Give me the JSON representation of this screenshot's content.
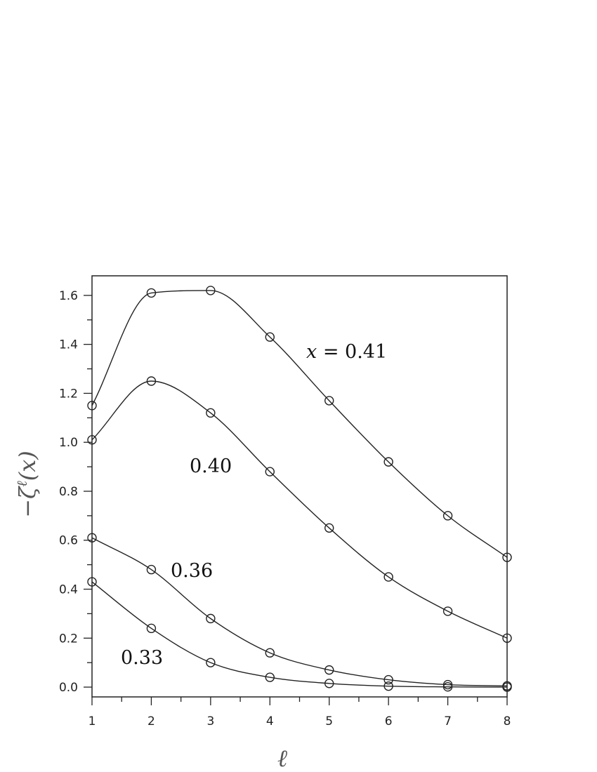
{
  "chart_data": {
    "type": "line",
    "xlabel": "ℓ",
    "ylabel": "−ζ",
    "ylabel_sup": "ℓ",
    "ylabel_tail": "(x)",
    "xlim": [
      1,
      8
    ],
    "ylim": [
      -0.04,
      1.68
    ],
    "x_ticks": [
      1,
      2,
      3,
      4,
      5,
      6,
      7,
      8
    ],
    "y_ticks": [
      "0.0",
      "0.2",
      "0.4",
      "0.6",
      "0.8",
      "1.0",
      "1.2",
      "1.4",
      "1.6"
    ],
    "grid": false,
    "marker": "open-circle",
    "x": [
      1,
      2,
      3,
      4,
      5,
      6,
      7,
      8
    ],
    "series": [
      {
        "name": "x = 0.41",
        "label_prefix": "x",
        "label_value": " = 0.41",
        "values": [
          1.15,
          1.61,
          1.62,
          1.43,
          1.17,
          0.92,
          0.7,
          0.53
        ]
      },
      {
        "name": "0.40",
        "values": [
          1.01,
          1.25,
          1.12,
          0.88,
          0.65,
          0.45,
          0.31,
          0.2
        ]
      },
      {
        "name": "0.36",
        "values": [
          0.61,
          0.48,
          0.28,
          0.14,
          0.07,
          0.03,
          0.01,
          0.005
        ]
      },
      {
        "name": "0.33",
        "values": [
          0.43,
          0.24,
          0.1,
          0.04,
          0.015,
          0.004,
          0.001,
          0.0
        ]
      }
    ]
  }
}
